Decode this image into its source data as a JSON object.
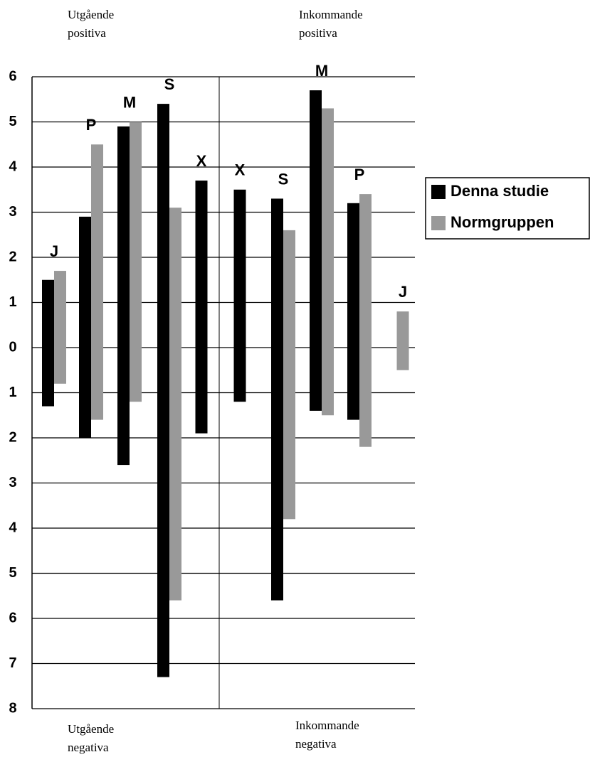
{
  "chart_data": {
    "type": "range-bar",
    "categories": [
      "J",
      "P",
      "M",
      "S",
      "X",
      "X",
      "S",
      "M",
      "P",
      "J"
    ],
    "series": [
      {
        "name": "Denna studie",
        "color": "#000000",
        "low": [
          -1.3,
          -2.0,
          -2.6,
          -7.3,
          -1.9,
          -1.2,
          -5.6,
          -1.4,
          -1.6,
          null
        ],
        "high": [
          1.5,
          2.9,
          4.9,
          5.4,
          3.7,
          3.5,
          3.3,
          5.7,
          3.2,
          null
        ]
      },
      {
        "name": "Normgruppen",
        "color": "#999999",
        "low": [
          -0.8,
          -1.6,
          -1.2,
          -5.6,
          null,
          null,
          -3.8,
          -1.5,
          -2.2,
          -0.5
        ],
        "high": [
          1.7,
          4.5,
          5.0,
          3.1,
          null,
          null,
          2.6,
          5.3,
          3.4,
          0.8
        ]
      }
    ],
    "ylim": [
      -8,
      6
    ],
    "yticks": [
      6,
      5,
      4,
      3,
      2,
      1,
      0,
      {
        "value": -1,
        "label": "1"
      },
      {
        "value": -2,
        "label": "2"
      },
      {
        "value": -3,
        "label": "3"
      },
      {
        "value": -4,
        "label": "4"
      },
      {
        "value": -5,
        "label": "5"
      },
      {
        "value": -6,
        "label": "6"
      },
      {
        "value": -7,
        "label": "7"
      },
      {
        "value": -8,
        "label": "8"
      }
    ],
    "grid": true,
    "annotations": [
      [
        "Utgående",
        "positiva"
      ],
      [
        "Inkommande",
        "positiva"
      ],
      [
        "Utgående",
        "negativa"
      ],
      [
        "Inkommande",
        "negativa"
      ]
    ]
  }
}
